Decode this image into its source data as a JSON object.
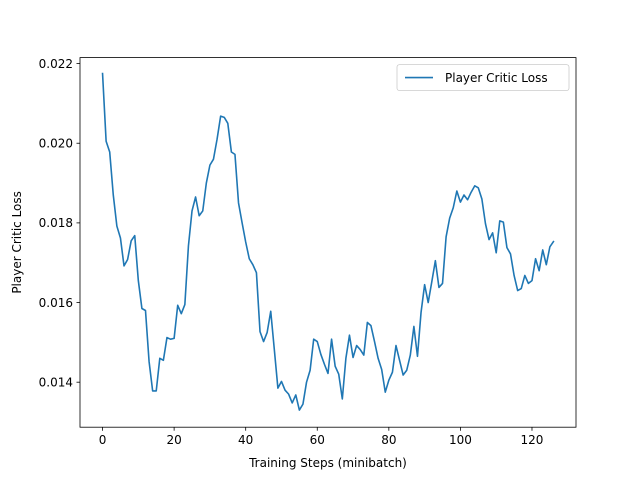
{
  "chart_data": {
    "type": "line",
    "title": "",
    "xlabel": "Training Steps (minibatch)",
    "ylabel": "Player Critic Loss",
    "xlim": [
      -6.3,
      132.3
    ],
    "ylim": [
      0.01287,
      0.02215
    ],
    "xticks": [
      0,
      20,
      40,
      60,
      80,
      100,
      120
    ],
    "xtick_labels": [
      "0",
      "20",
      "40",
      "60",
      "80",
      "100",
      "120"
    ],
    "yticks": [
      0.014,
      0.016,
      0.018,
      0.02,
      0.022
    ],
    "ytick_labels": [
      "0.014",
      "0.016",
      "0.018",
      "0.020",
      "0.022"
    ],
    "grid": false,
    "legend": {
      "position": "upper-right"
    },
    "colors": {
      "series": "#1f77b4",
      "axes": "#000000"
    },
    "series": [
      {
        "name": "Player Critic Loss",
        "x": [
          0,
          1,
          2,
          3,
          4,
          5,
          6,
          7,
          8,
          9,
          10,
          11,
          12,
          13,
          14,
          15,
          16,
          17,
          18,
          19,
          20,
          21,
          22,
          23,
          24,
          25,
          26,
          27,
          28,
          29,
          30,
          31,
          32,
          33,
          34,
          35,
          36,
          37,
          38,
          39,
          40,
          41,
          42,
          43,
          44,
          45,
          46,
          47,
          48,
          49,
          50,
          51,
          52,
          53,
          54,
          55,
          56,
          57,
          58,
          59,
          60,
          61,
          62,
          63,
          64,
          65,
          66,
          67,
          68,
          69,
          70,
          71,
          72,
          73,
          74,
          75,
          76,
          77,
          78,
          79,
          80,
          81,
          82,
          83,
          84,
          85,
          86,
          87,
          88,
          89,
          90,
          91,
          92,
          93,
          94,
          95,
          96,
          97,
          98,
          99,
          100,
          101,
          102,
          103,
          104,
          105,
          106,
          107,
          108,
          109,
          110,
          111,
          112,
          113,
          114,
          115,
          116,
          117,
          118,
          119,
          120,
          121,
          122,
          123,
          124,
          125,
          126
        ],
        "values": [
          0.02175,
          0.02005,
          0.01978,
          0.0187,
          0.01792,
          0.01762,
          0.01692,
          0.01708,
          0.01755,
          0.01768,
          0.01655,
          0.01585,
          0.0158,
          0.01452,
          0.01378,
          0.01378,
          0.0146,
          0.01455,
          0.01512,
          0.01508,
          0.0151,
          0.01593,
          0.01572,
          0.01595,
          0.01742,
          0.0183,
          0.01865,
          0.01818,
          0.0183,
          0.019,
          0.01945,
          0.0196,
          0.0201,
          0.02068,
          0.02065,
          0.0205,
          0.01978,
          0.01972,
          0.0185,
          0.018,
          0.01752,
          0.0171,
          0.01695,
          0.01675,
          0.01527,
          0.01502,
          0.01525,
          0.01578,
          0.01482,
          0.01385,
          0.01402,
          0.0138,
          0.0137,
          0.01348,
          0.01368,
          0.0133,
          0.01345,
          0.014,
          0.0143,
          0.01508,
          0.01502,
          0.0147,
          0.01445,
          0.01422,
          0.01508,
          0.0144,
          0.0142,
          0.01358,
          0.0146,
          0.01518,
          0.01462,
          0.01492,
          0.01482,
          0.01468,
          0.0155,
          0.01542,
          0.01502,
          0.0146,
          0.01432,
          0.01375,
          0.01405,
          0.01425,
          0.01492,
          0.01455,
          0.01418,
          0.0143,
          0.01468,
          0.0154,
          0.01465,
          0.01575,
          0.01645,
          0.016,
          0.01652,
          0.01705,
          0.01638,
          0.01648,
          0.01765,
          0.01812,
          0.01838,
          0.0188,
          0.01852,
          0.0187,
          0.01858,
          0.01877,
          0.01893,
          0.01888,
          0.0186,
          0.01798,
          0.01758,
          0.01775,
          0.01725,
          0.01805,
          0.01802,
          0.01738,
          0.01722,
          0.01668,
          0.0163,
          0.01635,
          0.01668,
          0.01648,
          0.01655,
          0.0171,
          0.0168,
          0.01732,
          0.01695,
          0.0174,
          0.01753
        ]
      }
    ]
  }
}
